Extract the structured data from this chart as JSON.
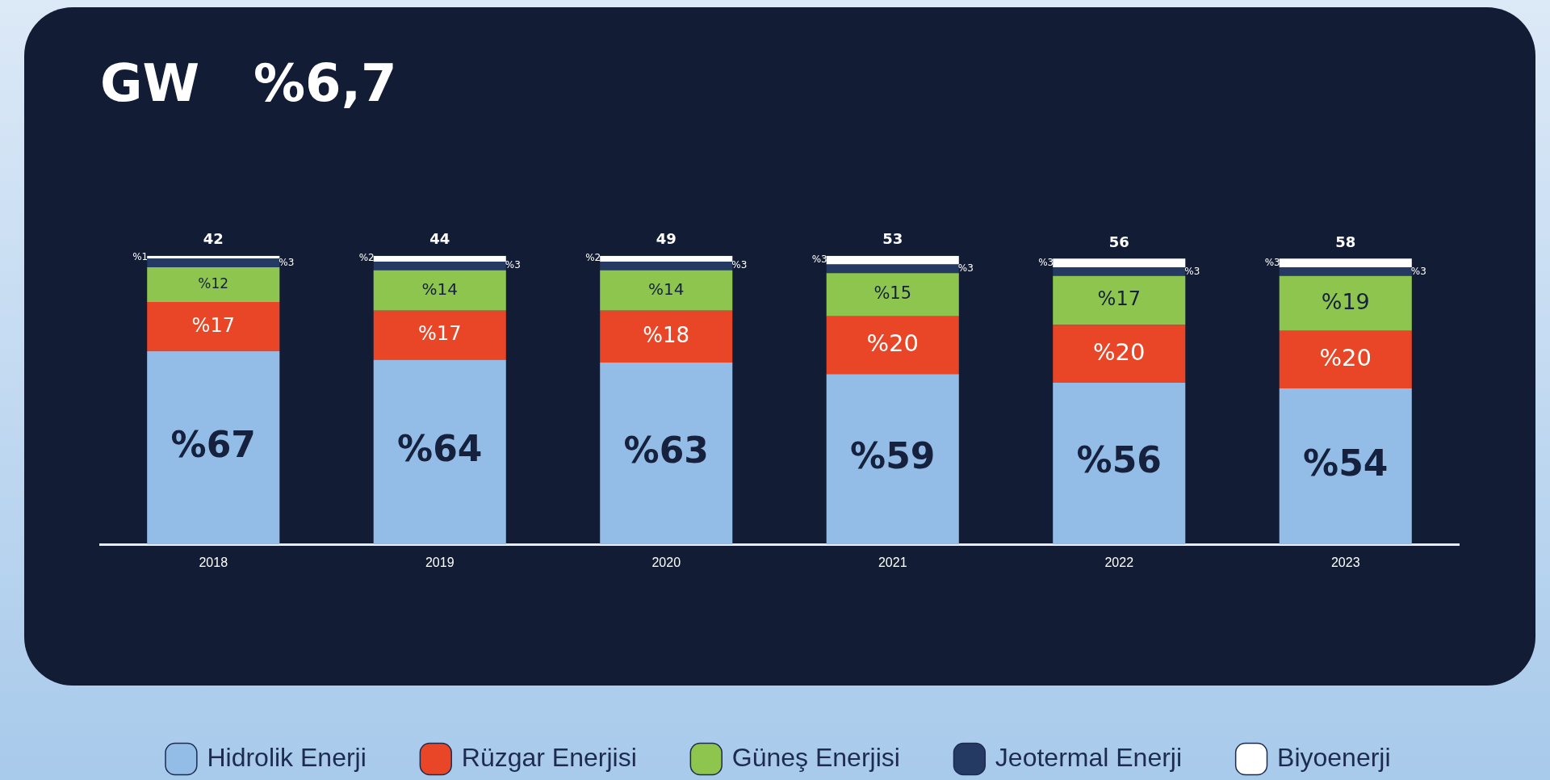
{
  "chart_data": {
    "type": "bar",
    "title": "GW   %6,7",
    "stacked": true,
    "legend": "bottom",
    "grid": false,
    "categories": [
      "2018",
      "2019",
      "2020",
      "2021",
      "2022",
      "2023"
    ],
    "annotations": [
      "42",
      "44",
      "49",
      "53",
      "56",
      "58"
    ],
    "series": [
      {
        "name": "Hidrolik Enerji",
        "color": "#93bde6",
        "values": [
          67,
          64,
          63,
          59,
          56,
          54
        ],
        "value_labels": [
          "%67",
          "%64",
          "%63",
          "%59",
          "%56",
          "%54"
        ]
      },
      {
        "name": "Rüzgar Enerjisi",
        "color": "#e84626",
        "values": [
          17,
          17,
          18,
          20,
          20,
          20
        ],
        "value_labels": [
          "%17",
          "%17",
          "%18",
          "%20",
          "%20",
          "%20"
        ]
      },
      {
        "name": "Güneş Enerjisi",
        "color": "#8dc54f",
        "values": [
          12,
          14,
          14,
          15,
          17,
          19
        ],
        "value_labels": [
          "%12",
          "%14",
          "%14",
          "%15",
          "%17",
          "%19"
        ]
      },
      {
        "name": "Jeotermal Enerji",
        "color": "#243a63",
        "values": [
          3,
          3,
          3,
          3,
          3,
          3
        ],
        "value_labels": [
          "%3",
          "%3",
          "%3",
          "%3",
          "%3",
          "%3"
        ]
      },
      {
        "name": "Biyoenerji",
        "color": "#ffffff",
        "values": [
          1,
          2,
          2,
          3,
          3,
          3
        ],
        "value_labels": [
          "%1",
          "%2",
          "%2",
          "%3",
          "%3",
          "%3"
        ]
      }
    ]
  }
}
